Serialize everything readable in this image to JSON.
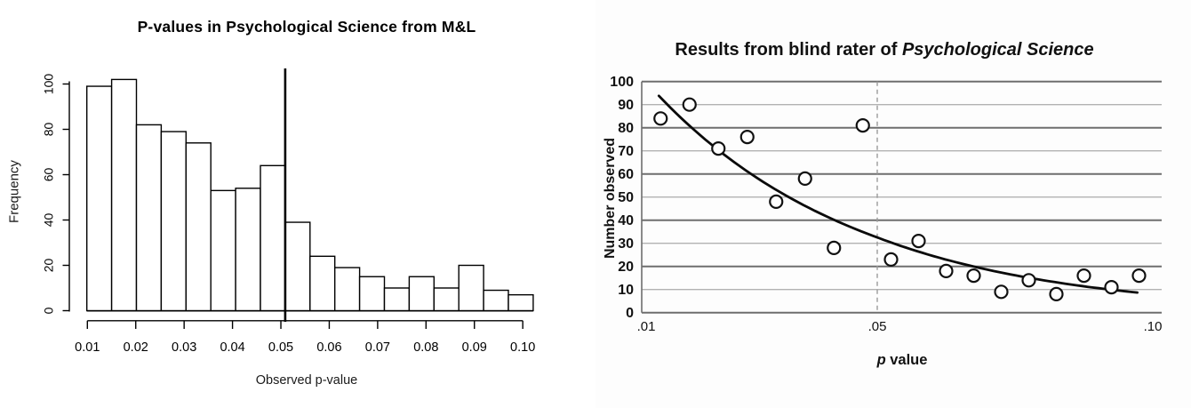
{
  "chart_data": [
    {
      "type": "histogram",
      "title": "P-values in Psychological Science from M&L",
      "xlabel": "Observed p-value",
      "ylabel": "Frequency",
      "bin_start": 0.01,
      "bin_width": 0.005,
      "values": [
        99,
        102,
        82,
        79,
        74,
        53,
        54,
        64,
        39,
        24,
        19,
        15,
        10,
        15,
        10,
        20,
        9,
        7
      ],
      "x_ticks": [
        {
          "v": 0.01,
          "label": "0.01"
        },
        {
          "v": 0.02,
          "label": "0.02"
        },
        {
          "v": 0.03,
          "label": "0.03"
        },
        {
          "v": 0.04,
          "label": "0.04"
        },
        {
          "v": 0.05,
          "label": "0.05"
        },
        {
          "v": 0.06,
          "label": "0.06"
        },
        {
          "v": 0.07,
          "label": "0.07"
        },
        {
          "v": 0.08,
          "label": "0.08"
        },
        {
          "v": 0.09,
          "label": "0.09"
        },
        {
          "v": 0.1,
          "label": "0.10"
        }
      ],
      "y_ticks": [
        {
          "v": 0,
          "label": "0"
        },
        {
          "v": 20,
          "label": "20"
        },
        {
          "v": 40,
          "label": "40"
        },
        {
          "v": 60,
          "label": "60"
        },
        {
          "v": 80,
          "label": "80"
        },
        {
          "v": 100,
          "label": "100"
        }
      ],
      "xlim": [
        0.01,
        0.1
      ],
      "ylim": [
        0,
        105
      ],
      "reference_line_x": 0.05,
      "grid": false,
      "bar_fill": "#ffffff",
      "bar_stroke": "#000000",
      "axis_color": "#000000"
    },
    {
      "type": "scatter",
      "title": "Results from blind rater of Psychological Science",
      "title_parts": {
        "prefix": "Results from blind rater of ",
        "italic": "Psychological Science"
      },
      "xlabel": "p value",
      "xlabel_parts": {
        "italic": "p",
        "rest": " value"
      },
      "ylabel": "Number observed",
      "x": [
        0.0125,
        0.0175,
        0.0225,
        0.0275,
        0.0325,
        0.0375,
        0.0425,
        0.0475,
        0.0525,
        0.0575,
        0.0625,
        0.0675,
        0.0725,
        0.0775,
        0.0825,
        0.0875,
        0.0925,
        0.0975
      ],
      "y": [
        84,
        90,
        71,
        76,
        48,
        58,
        28,
        81,
        23,
        31,
        18,
        16,
        9,
        14,
        8,
        16,
        11,
        16
      ],
      "x_ticks": [
        {
          "v": 0.01,
          "label": ".01"
        },
        {
          "v": 0.05,
          "label": ".05"
        },
        {
          "v": 0.1,
          "label": ".10"
        }
      ],
      "y_ticks": [
        0,
        10,
        20,
        30,
        40,
        50,
        60,
        70,
        80,
        90,
        100
      ],
      "xlim": [
        0.01,
        0.1
      ],
      "ylim": [
        0,
        100
      ],
      "grid": true,
      "gridline_color_major": "#6e6e6e",
      "gridline_color_minor": "#b2b2b2",
      "dashed_vline_x": 0.05,
      "dashed_vline_color": "#9a9a9a",
      "trend_curve": {
        "kind": "exponential",
        "formula": "y = 132*exp(-28x)",
        "a": 132,
        "b": 28,
        "x_start": 0.0122,
        "x_end": 0.098
      },
      "marker": {
        "shape": "open-circle",
        "stroke": "#111111",
        "fill": "#ffffff"
      }
    }
  ]
}
